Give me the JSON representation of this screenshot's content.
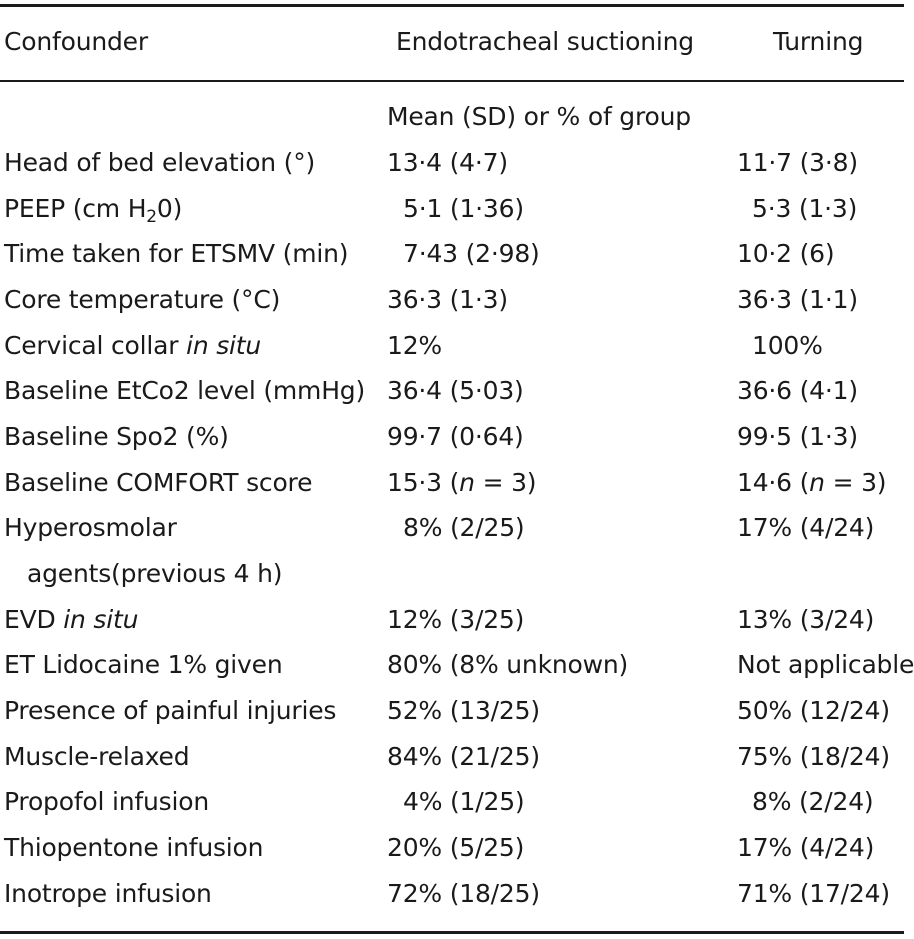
{
  "table": {
    "headers": {
      "confounder": "Confounder",
      "suction": "Endotracheal suctioning",
      "turning": "Turning"
    },
    "subheader": "Mean (SD) or % of group",
    "rows": [
      {
        "label": "Head of bed elevation (°)",
        "suction": "13·4 (4·7)",
        "turning": "11·7 (3·8)"
      },
      {
        "label_pre": "PEEP (cm H",
        "label_sub": "2",
        "label_post": "0)",
        "suction": "5·1 (1·36)",
        "turning": "5·3 (1·3)"
      },
      {
        "label": "Time taken for ETSMV (min)",
        "suction": "7·43 (2·98)",
        "turning": "10·2 (6)"
      },
      {
        "label": "Core temperature (°C)",
        "suction": "36·3 (1·3)",
        "turning": "36·3 (1·1)"
      },
      {
        "label_pre": "Cervical collar ",
        "label_em": "in situ",
        "suction": "12%",
        "turning": "100%"
      },
      {
        "label": "Baseline EtCo2 level (mmHg)",
        "suction": "36·4 (5·03)",
        "turning": "36·6 (4·1)"
      },
      {
        "label": "Baseline Spo2 (%)",
        "suction": "99·7 (0·64)",
        "turning": "99·5 (1·3)"
      },
      {
        "label": "Baseline COMFORT score",
        "suction_pre": "15·3 (",
        "suction_em": "n",
        "suction_post": " = 3)",
        "turning_pre": "14·6 (",
        "turning_em": "n",
        "turning_post": " = 3)"
      },
      {
        "label": "Hyperosmolar",
        "label2": "agents(previous 4 h)",
        "suction": "8% (2/25)",
        "turning": "17% (4/24)"
      },
      {
        "label_pre": "EVD ",
        "label_em": "in situ",
        "suction": "12% (3/25)",
        "turning": "13% (3/24)"
      },
      {
        "label": "ET Lidocaine 1% given",
        "suction": "80% (8% unknown)",
        "turning": "Not applicable"
      },
      {
        "label": "Presence of painful injuries",
        "suction": "52% (13/25)",
        "turning": "50% (12/24)"
      },
      {
        "label": "Muscle-relaxed",
        "suction": "84% (21/25)",
        "turning": "75% (18/24)"
      },
      {
        "label": "Propofol infusion",
        "suction": "4% (1/25)",
        "turning": "8% (2/24)"
      },
      {
        "label": "Thiopentone infusion",
        "suction": "20% (5/25)",
        "turning": "17% (4/24)"
      },
      {
        "label": "Inotrope infusion",
        "suction": "72% (18/25)",
        "turning": "71% (17/24)"
      }
    ]
  }
}
